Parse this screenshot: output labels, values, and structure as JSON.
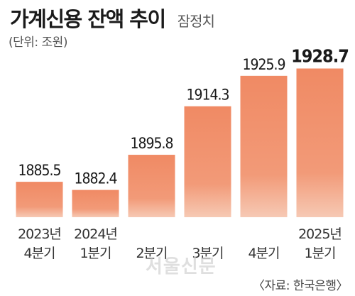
{
  "header": {
    "title": "가계신용 잔액 추이",
    "subtitle": "잠정치",
    "unit": "(단위: 조원)"
  },
  "source": "〈자료: 한국은행〉",
  "watermark": "서울신문",
  "colors": {
    "bar_top": "#f08a64",
    "bar_bottom": "#f6c9b4",
    "text": "#1a1a1a"
  },
  "chart_data": {
    "type": "bar",
    "title": "가계신용 잔액 추이",
    "subtitle": "잠정치",
    "unit": "조원",
    "categories": [
      [
        "2023년",
        "4분기"
      ],
      [
        "2024년",
        "1분기"
      ],
      [
        "",
        "2분기"
      ],
      [
        "",
        "3분기"
      ],
      [
        "",
        "4분기"
      ],
      [
        "2025년",
        "1분기"
      ]
    ],
    "values": [
      1885.5,
      1882.4,
      1895.8,
      1914.3,
      1925.9,
      1928.7
    ],
    "value_labels": [
      "1885.5",
      "1882.4",
      "1895.8",
      "1914.3",
      "1925.9",
      "1928.7"
    ],
    "highlight_index": 5,
    "ylim": [
      1872,
      1931
    ],
    "grid": false,
    "legend": "none"
  }
}
